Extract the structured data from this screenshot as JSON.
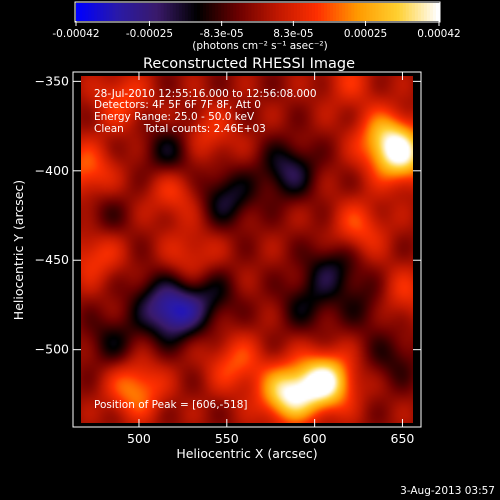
{
  "chart_data": {
    "type": "heatmap",
    "title": "Reconstructed RHESSI Image",
    "xlabel": "Heliocentric X (arcsec)",
    "ylabel": "Heliocentric Y (arcsec)",
    "xlim": [
      467,
      656
    ],
    "ylim": [
      -541,
      -347
    ],
    "x_ticks": [
      500,
      550,
      600,
      650
    ],
    "y_ticks": [
      -350,
      -400,
      -450,
      -500
    ],
    "colorbar": {
      "range": [
        -0.00042,
        0.00042
      ],
      "tick_values": [
        -0.00042,
        -0.00025,
        -8.3e-05,
        8.3e-05,
        0.00025,
        0.00042
      ],
      "tick_labels": [
        "-0.00042",
        "-0.00025",
        "-8.3e-05",
        "8.3e-05",
        "0.00025",
        "0.00042"
      ],
      "units": "(photons cm⁻² s⁻¹ asec⁻²)",
      "colormap": [
        "#0000ff",
        "#2a1aa8",
        "#3a1a6a",
        "#000000",
        "#6a0000",
        "#c01800",
        "#ff3000",
        "#ff9a00",
        "#ffd030",
        "#ffffff"
      ]
    },
    "annotations": {
      "time": "28-Jul-2010 12:55:16.000 to 12:56:08.000",
      "detectors": "Detectors: 4F 5F 6F 7F 8F, Att 0",
      "energy": "Energy Range: 25.0 - 50.0 keV",
      "algorithm": "Clean      Total counts: 2.46E+03",
      "peak": "Position of Peak = [606,-518]"
    },
    "peak_position": [
      606,
      -518
    ],
    "features": [
      {
        "x": 606,
        "y": -518,
        "value": 0.00042
      },
      {
        "x": 585,
        "y": -525,
        "value": 0.00038
      },
      {
        "x": 650,
        "y": -392,
        "value": 0.00032
      },
      {
        "x": 640,
        "y": -382,
        "value": 0.00026
      },
      {
        "x": 498,
        "y": -522,
        "value": 0.00022
      },
      {
        "x": 470,
        "y": -400,
        "value": 0.00018
      },
      {
        "x": 555,
        "y": -508,
        "value": 0.00016
      },
      {
        "x": 625,
        "y": -432,
        "value": 0.00015
      },
      {
        "x": 475,
        "y": -447,
        "value": 0.00014
      },
      {
        "x": 490,
        "y": -360,
        "value": 0.00014
      },
      {
        "x": 540,
        "y": -380,
        "value": 0.00012
      },
      {
        "x": 520,
        "y": -412,
        "value": 0.00013
      },
      {
        "x": 620,
        "y": -350,
        "value": 0.0001
      },
      {
        "x": 530,
        "y": -448,
        "value": 0.00011
      },
      {
        "x": 650,
        "y": -470,
        "value": 0.00012
      },
      {
        "x": 508,
        "y": -470,
        "value": -0.0001
      },
      {
        "x": 585,
        "y": -400,
        "value": -0.0002
      },
      {
        "x": 520,
        "y": -480,
        "value": -0.0003
      },
      {
        "x": 550,
        "y": -415,
        "value": -0.00018
      },
      {
        "x": 518,
        "y": -390,
        "value": -0.00015
      },
      {
        "x": 540,
        "y": -470,
        "value": -0.00014
      },
      {
        "x": 610,
        "y": -455,
        "value": -0.00016
      },
      {
        "x": 595,
        "y": -475,
        "value": -0.00012
      },
      {
        "x": 645,
        "y": -505,
        "value": -0.0001
      },
      {
        "x": 485,
        "y": -495,
        "value": -0.00012
      },
      {
        "x": 630,
        "y": -475,
        "value": -0.0001
      },
      {
        "x": 480,
        "y": -425,
        "value": -8e-05
      }
    ],
    "footer_date": "3-Aug-2013 03:57"
  }
}
